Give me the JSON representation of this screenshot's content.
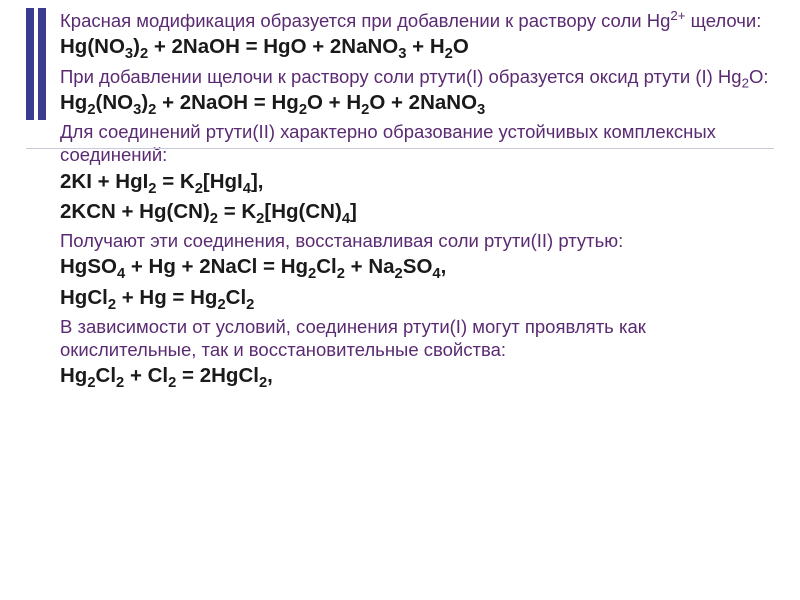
{
  "colors": {
    "accent_bar": "#3b3b8f",
    "desc_text": "#5a2a72",
    "eq_text": "#1a1a1a",
    "background": "#ffffff",
    "rule": "#c9c9dd"
  },
  "fontsizes": {
    "desc": 18.5,
    "eq": 20.5
  },
  "content": [
    {
      "type": "desc",
      "html": "Красная модификация образуется при добавлении к раствору соли Hg<sup>2+</sup> щелочи:"
    },
    {
      "type": "eq",
      "html": "Hg(NO<sub>3</sub>)<sub>2</sub> + 2NaOH = HgO + 2NaNO<sub>3</sub> + H<sub>2</sub>O"
    },
    {
      "type": "desc",
      "html": "При добавлении щелочи к раствору соли ртути(I) образуется оксид ртути (I) Hg<sub>2</sub>O:"
    },
    {
      "type": "eq",
      "html": "Hg<sub>2</sub>(NO<sub>3</sub>)<sub>2</sub> + 2NaOH = Hg<sub>2</sub>O + H<sub>2</sub>O + 2NaNO<sub>3</sub>"
    },
    {
      "type": "desc",
      "html": "Для соединений ртути(II) характерно образование устойчивых комплексных соединений:"
    },
    {
      "type": "eq",
      "html": "2KI + HgI<sub>2</sub> = K<sub>2</sub>[HgI<sub>4</sub>],"
    },
    {
      "type": "eq",
      "html": "2KCN + Hg(CN)<sub>2</sub> = K<sub>2</sub>[Hg(CN)<sub>4</sub>]"
    },
    {
      "type": "desc",
      "html": "Получают эти соединения, восстанавливая соли ртути(II) ртутью:"
    },
    {
      "type": "eq",
      "html": "HgSO<sub>4</sub> + Hg + 2NaCl = Hg<sub>2</sub>Cl<sub>2</sub> + Na<sub>2</sub>SO<sub>4</sub>,"
    },
    {
      "type": "eq",
      "html": "HgCl<sub>2</sub> + Hg = Hg<sub>2</sub>Cl<sub>2</sub>"
    },
    {
      "type": "desc",
      "html": "В зависимости от условий, соединения ртути(I) могут проявлять как окислительные, так и восстановительные свойства:"
    },
    {
      "type": "eq",
      "html": "Hg<sub>2</sub>Cl<sub>2</sub> + Cl<sub>2</sub> = 2HgCl<sub>2</sub>,"
    }
  ]
}
